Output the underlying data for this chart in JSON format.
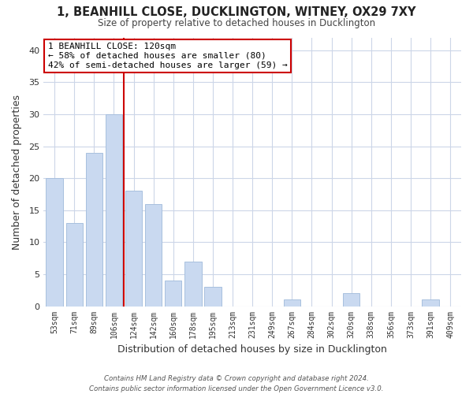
{
  "title": "1, BEANHILL CLOSE, DUCKLINGTON, WITNEY, OX29 7XY",
  "subtitle": "Size of property relative to detached houses in Ducklington",
  "xlabel": "Distribution of detached houses by size in Ducklington",
  "ylabel": "Number of detached properties",
  "bar_labels": [
    "53sqm",
    "71sqm",
    "89sqm",
    "106sqm",
    "124sqm",
    "142sqm",
    "160sqm",
    "178sqm",
    "195sqm",
    "213sqm",
    "231sqm",
    "249sqm",
    "267sqm",
    "284sqm",
    "302sqm",
    "320sqm",
    "338sqm",
    "356sqm",
    "373sqm",
    "391sqm",
    "409sqm"
  ],
  "bar_values": [
    20,
    13,
    24,
    30,
    18,
    16,
    4,
    7,
    3,
    0,
    0,
    0,
    1,
    0,
    0,
    2,
    0,
    0,
    0,
    1,
    0
  ],
  "bar_color": "#c9d9f0",
  "bar_edge_color": "#a8c0de",
  "vline_color": "#cc0000",
  "annotation_line1": "1 BEANHILL CLOSE: 120sqm",
  "annotation_line2": "← 58% of detached houses are smaller (80)",
  "annotation_line3": "42% of semi-detached houses are larger (59) →",
  "annotation_box_color": "#ffffff",
  "annotation_box_edge": "#cc0000",
  "ylim": [
    0,
    42
  ],
  "yticks": [
    0,
    5,
    10,
    15,
    20,
    25,
    30,
    35,
    40
  ],
  "footer_line1": "Contains HM Land Registry data © Crown copyright and database right 2024.",
  "footer_line2": "Contains public sector information licensed under the Open Government Licence v3.0.",
  "bg_color": "#ffffff",
  "grid_color": "#ccd6e8"
}
